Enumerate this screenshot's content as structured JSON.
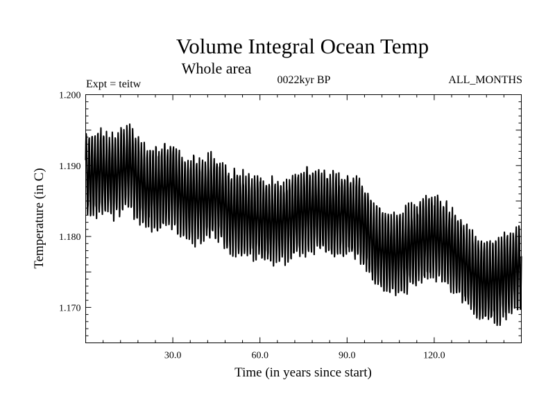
{
  "chart_data": {
    "type": "line",
    "title": "Volume Integral Ocean Temp",
    "subtitle": "Whole area",
    "experiment": "Expt = teitw",
    "period": "0022kyr BP",
    "months": "ALL_MONTHS",
    "xlabel": "Time (in years since start)",
    "ylabel": "Temperature (in C)",
    "xlim": [
      0,
      150
    ],
    "ylim": [
      1.165,
      1.2
    ],
    "x_ticks": [
      30,
      60,
      90,
      120
    ],
    "x_tick_labels": [
      "30.0",
      "60.0",
      "90.0",
      "120.0"
    ],
    "y_ticks": [
      1.17,
      1.18,
      1.19,
      1.2
    ],
    "y_tick_labels": [
      "1.170",
      "1.180",
      "1.190",
      "1.200"
    ],
    "grid": false,
    "series": [
      {
        "name": "Volume integral ocean temperature",
        "color": "#000000",
        "seasonal_cycle_amplitude": 0.0055,
        "annual_mean": {
          "x": [
            0,
            5,
            10,
            15,
            20,
            25,
            30,
            35,
            40,
            45,
            50,
            55,
            60,
            65,
            70,
            75,
            80,
            85,
            90,
            95,
            100,
            105,
            110,
            115,
            120,
            125,
            130,
            135,
            140,
            145,
            150
          ],
          "y": [
            1.1885,
            1.189,
            1.1885,
            1.19,
            1.187,
            1.1865,
            1.1875,
            1.185,
            1.1852,
            1.1855,
            1.1835,
            1.183,
            1.1825,
            1.182,
            1.1825,
            1.1835,
            1.1838,
            1.183,
            1.1832,
            1.182,
            1.1785,
            1.1775,
            1.178,
            1.1792,
            1.18,
            1.1785,
            1.1765,
            1.174,
            1.1735,
            1.1745,
            1.1758
          ]
        }
      }
    ]
  }
}
